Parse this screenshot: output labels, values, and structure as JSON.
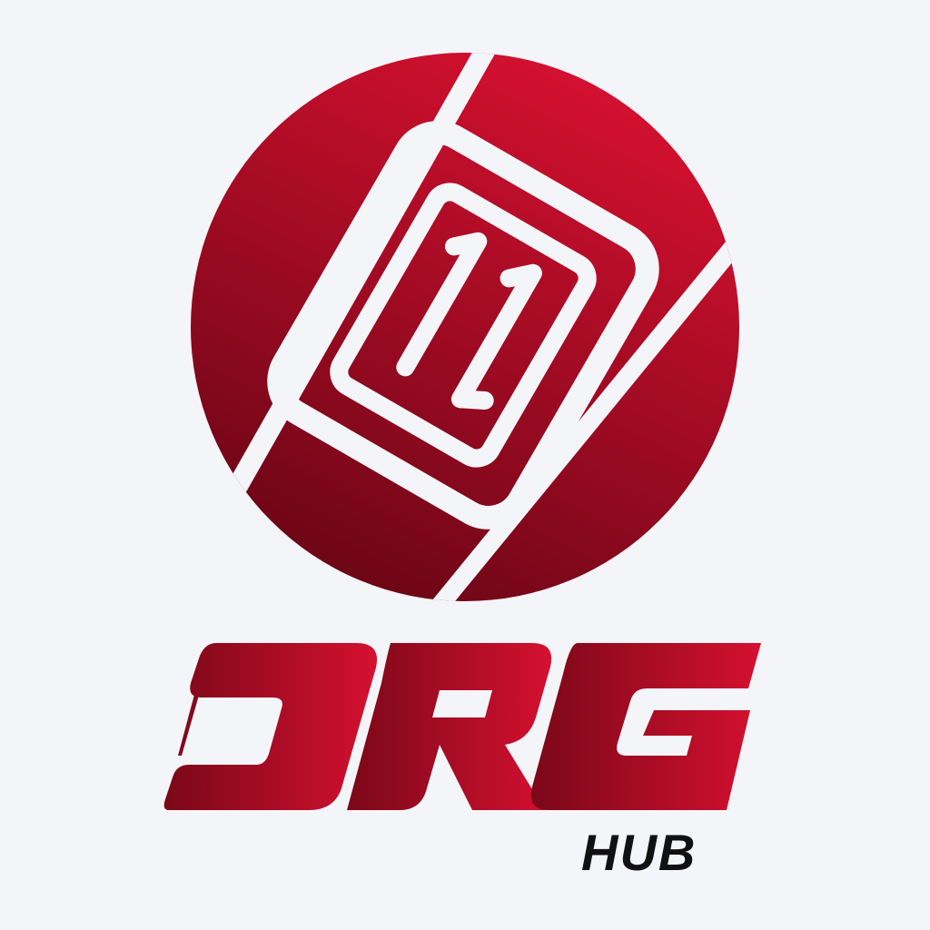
{
  "logo": {
    "wordmark": "ORG",
    "subword": "HUB",
    "colors": {
      "background": "#f4f5f9",
      "red_light": "#d51030",
      "red_dark": "#6e0616",
      "subword": "#111111",
      "stripe": "#f4f5f9"
    },
    "emblem_icon": "11-badge-in-ball-icon"
  }
}
